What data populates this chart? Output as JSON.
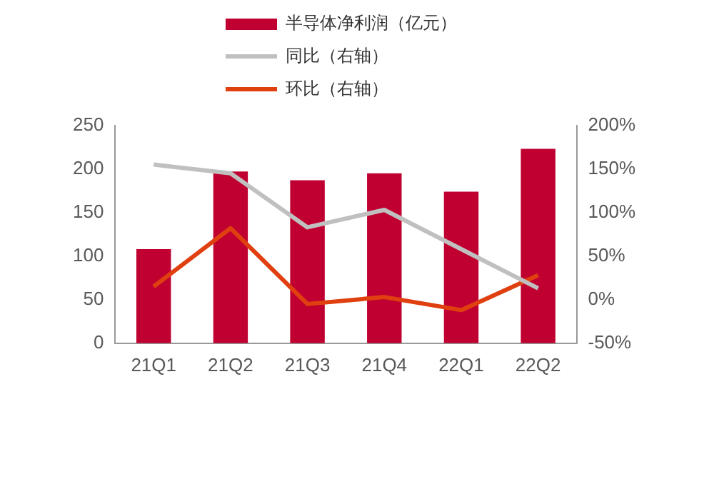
{
  "chart_data": {
    "type": "bar",
    "categories": [
      "21Q1",
      "21Q2",
      "21Q3",
      "21Q4",
      "22Q1",
      "22Q2"
    ],
    "series": [
      {
        "name": "半导体净利润（亿元）",
        "color": "#c00030",
        "values": [
          108,
          197,
          187,
          195,
          174,
          223
        ]
      },
      {
        "name": "同比（右轴）",
        "type": "line",
        "axis": "y2",
        "color": "#c0c0c0",
        "values": [
          155,
          145,
          83,
          103,
          58,
          13
        ]
      },
      {
        "name": "环比（右轴）",
        "type": "line",
        "axis": "y2",
        "color": "#e04010",
        "values": [
          15,
          82,
          -5,
          3,
          -12,
          28
        ]
      }
    ],
    "ylim": [
      0,
      250
    ],
    "yticks": [
      0,
      50,
      100,
      150,
      200,
      250
    ],
    "y2lim": [
      -50,
      200
    ],
    "y2ticks": [
      {
        "value": -50,
        "label": "-50%"
      },
      {
        "value": 0,
        "label": "0%"
      },
      {
        "value": 50,
        "label": "50%"
      },
      {
        "value": 100,
        "label": "100%"
      },
      {
        "value": 150,
        "label": "150%"
      },
      {
        "value": 200,
        "label": "200%"
      }
    ],
    "grid": false,
    "legend": "top",
    "marker": "none",
    "line_style": "solid"
  }
}
